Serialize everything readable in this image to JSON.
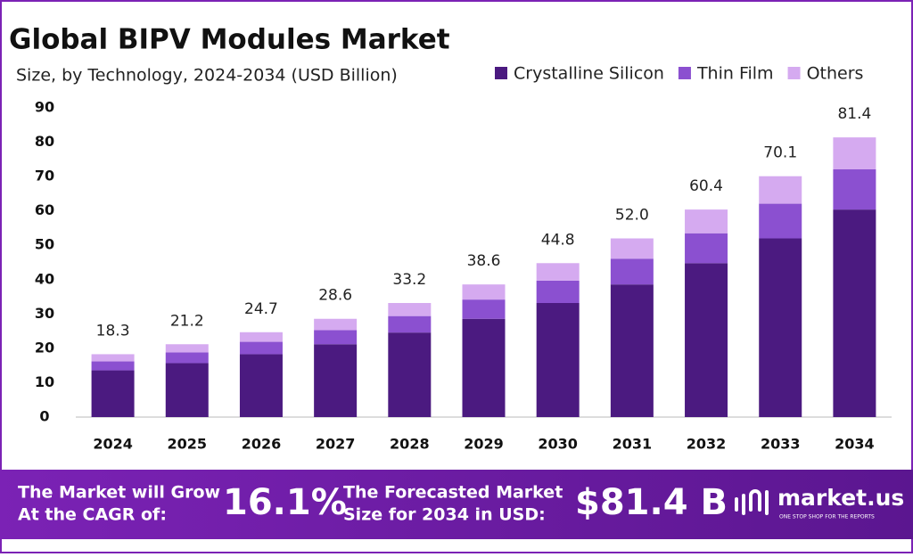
{
  "chart_data": {
    "type": "stacked-bar",
    "title": "Global BIPV Modules Market",
    "subtitle": "Size, by Technology, 2024-2034 (USD Billion)",
    "categories": [
      "2024",
      "2025",
      "2026",
      "2027",
      "2028",
      "2029",
      "2030",
      "2031",
      "2032",
      "2033",
      "2034"
    ],
    "series": [
      {
        "name": "Crystalline Silicon",
        "color": "#4b1a80",
        "values": [
          13.6,
          15.7,
          18.3,
          21.2,
          24.6,
          28.6,
          33.2,
          38.6,
          44.8,
          52.0,
          60.4
        ]
      },
      {
        "name": "Thin Film",
        "color": "#8b50d0",
        "values": [
          2.6,
          3.1,
          3.6,
          4.1,
          4.8,
          5.6,
          6.5,
          7.5,
          8.7,
          10.1,
          11.7
        ]
      },
      {
        "name": "Others",
        "color": "#d5aaf0",
        "values": [
          2.1,
          2.4,
          2.8,
          3.3,
          3.8,
          4.4,
          5.1,
          5.9,
          6.9,
          8.0,
          9.3
        ]
      }
    ],
    "totals": {
      "values": [
        18.3,
        21.2,
        24.7,
        28.6,
        33.2,
        38.6,
        44.8,
        52,
        60.4,
        70.1,
        81.4
      ],
      "value_labels": [
        "18.3",
        "21.2",
        "24.7",
        "28.6",
        "33.2",
        "38.6",
        "44.8",
        "52.0",
        "60.4",
        "70.1",
        "81.4"
      ]
    },
    "ylim": [
      0,
      90
    ],
    "yticks": [
      0,
      10,
      20,
      30,
      40,
      50,
      60,
      70,
      80,
      90
    ],
    "grid": false,
    "legend": "top-right"
  },
  "footer": {
    "cagr_text": [
      "The Market will Grow",
      "At the CAGR of:"
    ],
    "cagr_value": "16.1%",
    "forecast_text": [
      "The Forecasted Market",
      "Size for 2034 in USD:"
    ],
    "forecast_value": "$81.4 B",
    "brand": "market.us",
    "tagline": "ONE STOP SHOP FOR THE REPORTS"
  }
}
